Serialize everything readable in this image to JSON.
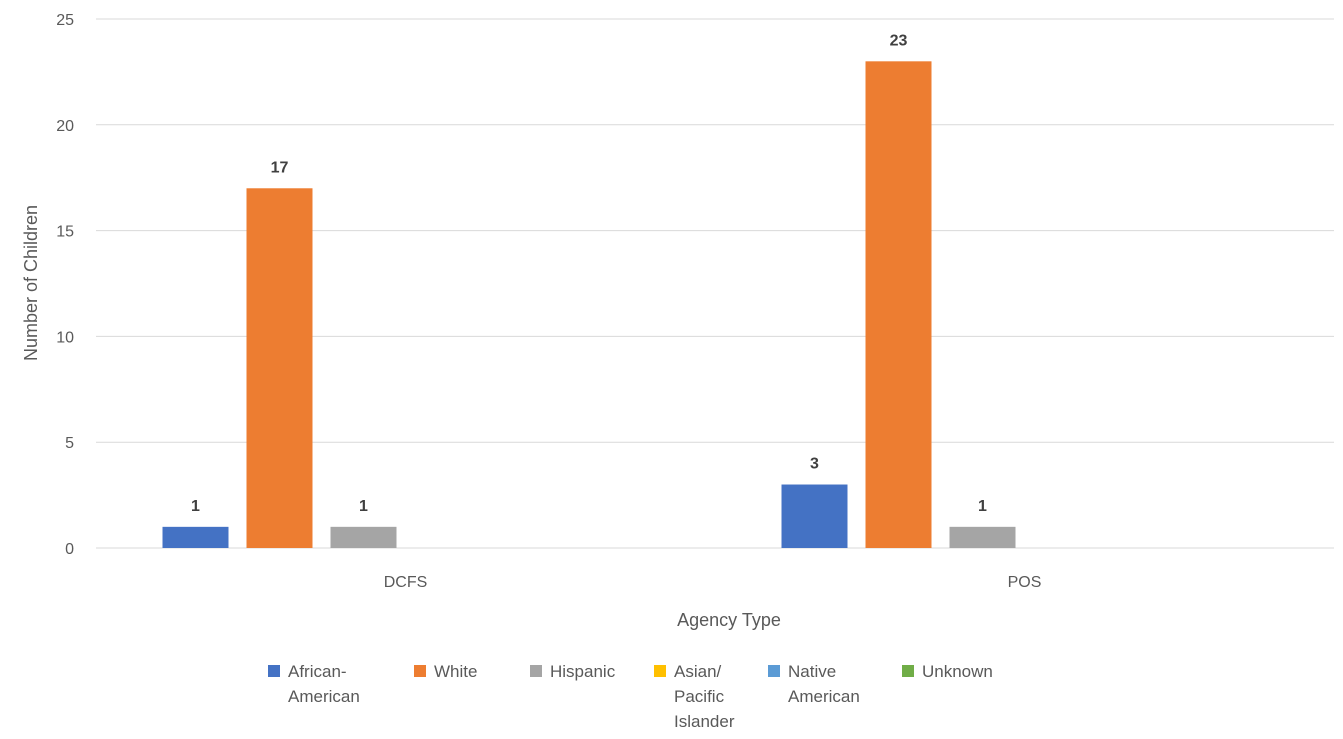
{
  "chart_data": {
    "type": "bar",
    "title": "",
    "xlabel": "Agency Type",
    "ylabel": "Number of Children",
    "ylim": [
      0,
      25
    ],
    "yticks": [
      0,
      5,
      10,
      15,
      20,
      25
    ],
    "categories": [
      "DCFS",
      "POS"
    ],
    "series": [
      {
        "name": "African-American",
        "legend_lines": [
          "African-",
          "American"
        ],
        "color": "#4472C4",
        "values": [
          1,
          3
        ]
      },
      {
        "name": "White",
        "legend_lines": [
          "White"
        ],
        "color": "#ED7D31",
        "values": [
          17,
          23
        ]
      },
      {
        "name": "Hispanic",
        "legend_lines": [
          "Hispanic"
        ],
        "color": "#A5A5A5",
        "values": [
          1,
          1
        ]
      },
      {
        "name": "Asian/ Pacific Islander",
        "legend_lines": [
          "Asian/",
          "Pacific",
          "Islander"
        ],
        "color": "#FFC000",
        "values": [
          0,
          0
        ]
      },
      {
        "name": "Native American",
        "legend_lines": [
          "Native",
          "American"
        ],
        "color": "#5B9BD5",
        "values": [
          0,
          0
        ]
      },
      {
        "name": "Unknown",
        "legend_lines": [
          "Unknown"
        ],
        "color": "#70AD47",
        "values": [
          0,
          0
        ]
      }
    ],
    "grid": true,
    "legend_position": "bottom",
    "data_labels": true
  }
}
